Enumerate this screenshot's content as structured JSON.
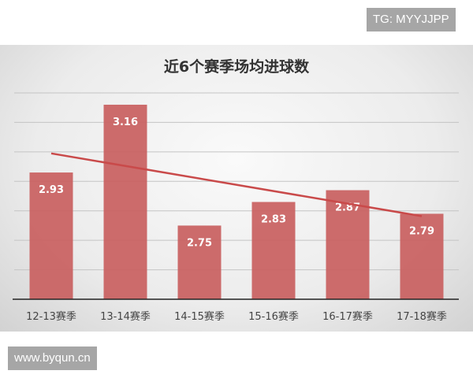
{
  "watermarks": {
    "top": "TG: MYYJJPP",
    "bottom": "www.byqun.cn"
  },
  "chart_data": {
    "type": "bar",
    "title": "近6个赛季场均进球数",
    "categories": [
      "12-13赛季",
      "13-14赛季",
      "14-15赛季",
      "15-16赛季",
      "16-17赛季",
      "17-18赛季"
    ],
    "values": [
      2.93,
      3.16,
      2.75,
      2.83,
      2.87,
      2.79
    ],
    "ylim": [
      2.5,
      3.2
    ],
    "grid": true,
    "trendline": "linear",
    "colors": {
      "bar": "#c9605f",
      "trend": "#c94a4a",
      "label": "#ffffff"
    }
  }
}
